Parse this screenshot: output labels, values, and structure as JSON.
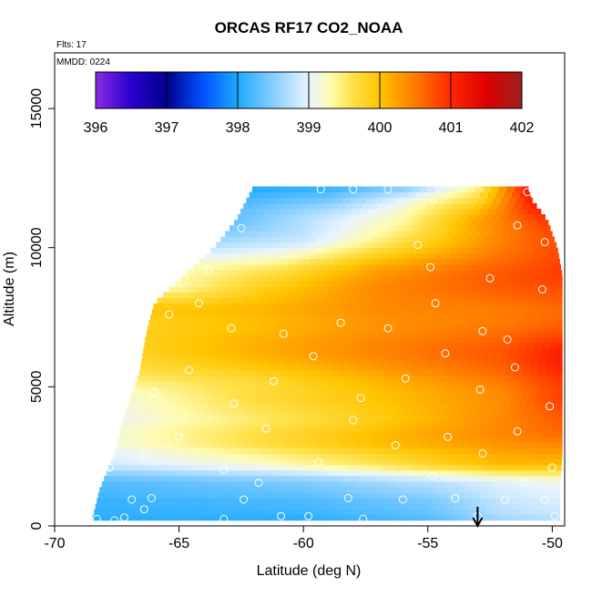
{
  "chart_data": {
    "type": "heatmap",
    "title": "ORCAS RF17 CO2_NOAA",
    "flights_label": "Flts: 17",
    "date_label": "MMDD: 0224",
    "xlabel": "Latitude (deg N)",
    "ylabel": "Altitude (m)",
    "xlim": [
      -70,
      -49.5
    ],
    "ylim": [
      0,
      17000
    ],
    "x_ticks": [
      -70,
      -65,
      -60,
      -55,
      -50
    ],
    "x_tick_labels": [
      "-70",
      "-65",
      "-60",
      "-55",
      "-50"
    ],
    "y_ticks": [
      0,
      5000,
      10000,
      15000
    ],
    "y_tick_labels": [
      "0",
      "5000",
      "10000",
      "15000"
    ],
    "colorbar": {
      "min": 396,
      "max": 402,
      "ticks": [
        396,
        397,
        398,
        399,
        400,
        401,
        402
      ],
      "tick_labels": [
        "396",
        "397",
        "398",
        "399",
        "400",
        "401",
        "402"
      ],
      "stops": [
        {
          "value": 396,
          "color": "#8a2be2"
        },
        {
          "value": 396.5,
          "color": "#2a00d0"
        },
        {
          "value": 397,
          "color": "#00008b"
        },
        {
          "value": 397.5,
          "color": "#0050ff"
        },
        {
          "value": 398,
          "color": "#1eaaff"
        },
        {
          "value": 398.5,
          "color": "#87ceff"
        },
        {
          "value": 399,
          "color": "#e8f4ff"
        },
        {
          "value": 399.3,
          "color": "#fffbb0"
        },
        {
          "value": 399.6,
          "color": "#ffe24d"
        },
        {
          "value": 400,
          "color": "#ffc400"
        },
        {
          "value": 400.5,
          "color": "#ff7a00"
        },
        {
          "value": 401,
          "color": "#ff2800"
        },
        {
          "value": 401.5,
          "color": "#dd0000"
        },
        {
          "value": 402,
          "color": "#9b2020"
        }
      ]
    },
    "coverage": [
      {
        "y": 200,
        "xmin": -68.5,
        "xmax": -49.7
      },
      {
        "y": 1300,
        "xmin": -68.2,
        "xmax": -49.7
      },
      {
        "y": 2600,
        "xmin": -67.6,
        "xmax": -49.6
      },
      {
        "y": 4000,
        "xmin": -67.2,
        "xmax": -49.6
      },
      {
        "y": 5500,
        "xmin": -66.6,
        "xmax": -49.6
      },
      {
        "y": 7000,
        "xmin": -66.3,
        "xmax": -49.6
      },
      {
        "y": 8000,
        "xmin": -66.0,
        "xmax": -49.6
      },
      {
        "y": 9000,
        "xmin": -64.8,
        "xmax": -49.6
      },
      {
        "y": 10000,
        "xmin": -63.6,
        "xmax": -49.8
      },
      {
        "y": 11000,
        "xmin": -62.7,
        "xmax": -50.2
      },
      {
        "y": 11700,
        "xmin": -62.3,
        "xmax": -50.8
      },
      {
        "y": 12200,
        "xmin": -62.0,
        "xmax": -51.0
      }
    ],
    "field_description_rows": [
      {
        "y": 200,
        "values": [
          {
            "x": -68.5,
            "v": 398.0
          },
          {
            "x": -60,
            "v": 398.0
          },
          {
            "x": -55,
            "v": 398.2
          },
          {
            "x": -52,
            "v": 398.6
          },
          {
            "x": -49.7,
            "v": 398.7
          }
        ]
      },
      {
        "y": 900,
        "values": [
          {
            "x": -68.2,
            "v": 398.0
          },
          {
            "x": -60,
            "v": 398.1
          },
          {
            "x": -55,
            "v": 398.3
          },
          {
            "x": -52,
            "v": 398.7
          },
          {
            "x": -49.7,
            "v": 398.8
          }
        ]
      },
      {
        "y": 1600,
        "values": [
          {
            "x": -68,
            "v": 398.3
          },
          {
            "x": -60,
            "v": 398.5
          },
          {
            "x": -55,
            "v": 398.8
          },
          {
            "x": -52,
            "v": 399.0
          },
          {
            "x": -49.7,
            "v": 399.1
          }
        ]
      },
      {
        "y": 2200,
        "values": [
          {
            "x": -67.8,
            "v": 399.0
          },
          {
            "x": -62,
            "v": 399.3
          },
          {
            "x": -57,
            "v": 399.7
          },
          {
            "x": -52,
            "v": 400.2
          },
          {
            "x": -49.6,
            "v": 400.2
          }
        ]
      },
      {
        "y": 3000,
        "values": [
          {
            "x": -67.5,
            "v": 399.1
          },
          {
            "x": -62,
            "v": 399.6
          },
          {
            "x": -57,
            "v": 400.0
          },
          {
            "x": -52,
            "v": 400.3
          },
          {
            "x": -49.6,
            "v": 400.4
          }
        ]
      },
      {
        "y": 3800,
        "values": [
          {
            "x": -67.2,
            "v": 399.0
          },
          {
            "x": -62,
            "v": 399.4
          },
          {
            "x": -57,
            "v": 399.8
          },
          {
            "x": -52,
            "v": 400.3
          },
          {
            "x": -49.6,
            "v": 400.6
          }
        ]
      },
      {
        "y": 4600,
        "values": [
          {
            "x": -66.8,
            "v": 399.3
          },
          {
            "x": -62,
            "v": 399.8
          },
          {
            "x": -57,
            "v": 400.1
          },
          {
            "x": -52,
            "v": 400.5
          },
          {
            "x": -49.6,
            "v": 401.0
          }
        ]
      },
      {
        "y": 5400,
        "values": [
          {
            "x": -66.6,
            "v": 399.6
          },
          {
            "x": -62,
            "v": 399.8
          },
          {
            "x": -57,
            "v": 400.2
          },
          {
            "x": -52,
            "v": 400.6
          },
          {
            "x": -49.6,
            "v": 401.0
          }
        ]
      },
      {
        "y": 6200,
        "values": [
          {
            "x": -66.4,
            "v": 399.7
          },
          {
            "x": -62,
            "v": 400.0
          },
          {
            "x": -57,
            "v": 400.3
          },
          {
            "x": -52,
            "v": 400.6
          },
          {
            "x": -49.6,
            "v": 401.0
          }
        ]
      },
      {
        "y": 7000,
        "values": [
          {
            "x": -66.2,
            "v": 399.9
          },
          {
            "x": -62,
            "v": 400.1
          },
          {
            "x": -57,
            "v": 400.4
          },
          {
            "x": -52,
            "v": 400.6
          },
          {
            "x": -49.6,
            "v": 400.8
          }
        ]
      },
      {
        "y": 7800,
        "values": [
          {
            "x": -66.0,
            "v": 400.1
          },
          {
            "x": -62,
            "v": 400.2
          },
          {
            "x": -57,
            "v": 400.5
          },
          {
            "x": -52,
            "v": 400.6
          },
          {
            "x": -49.6,
            "v": 400.7
          }
        ]
      },
      {
        "y": 8600,
        "values": [
          {
            "x": -65.0,
            "v": 399.2
          },
          {
            "x": -62,
            "v": 399.7
          },
          {
            "x": -57,
            "v": 400.3
          },
          {
            "x": -52,
            "v": 400.6
          },
          {
            "x": -49.6,
            "v": 400.7
          }
        ]
      },
      {
        "y": 9400,
        "values": [
          {
            "x": -64.0,
            "v": 399.2
          },
          {
            "x": -61,
            "v": 399.4
          },
          {
            "x": -57,
            "v": 400.1
          },
          {
            "x": -52,
            "v": 400.6
          },
          {
            "x": -49.7,
            "v": 400.8
          }
        ]
      },
      {
        "y": 10200,
        "values": [
          {
            "x": -63.5,
            "v": 398.8
          },
          {
            "x": -60,
            "v": 399.0
          },
          {
            "x": -56,
            "v": 399.8
          },
          {
            "x": -52,
            "v": 400.6
          },
          {
            "x": -49.9,
            "v": 400.9
          }
        ]
      },
      {
        "y": 11000,
        "values": [
          {
            "x": -62.7,
            "v": 398.3
          },
          {
            "x": -60,
            "v": 398.7
          },
          {
            "x": -56,
            "v": 399.3
          },
          {
            "x": -53,
            "v": 400.2
          },
          {
            "x": -50.2,
            "v": 400.9
          }
        ]
      },
      {
        "y": 11700,
        "values": [
          {
            "x": -62.3,
            "v": 398.1
          },
          {
            "x": -59,
            "v": 398.3
          },
          {
            "x": -56,
            "v": 398.9
          },
          {
            "x": -53,
            "v": 399.6
          },
          {
            "x": -50.8,
            "v": 401.0
          }
        ]
      },
      {
        "y": 12100,
        "values": [
          {
            "x": -62.0,
            "v": 398.0
          },
          {
            "x": -59,
            "v": 398.1
          },
          {
            "x": -56,
            "v": 398.5
          },
          {
            "x": -53,
            "v": 399.4
          },
          {
            "x": -51.0,
            "v": 401.1
          }
        ]
      }
    ],
    "sample_points": [
      {
        "x": -68.3,
        "y": 250
      },
      {
        "x": -67.6,
        "y": 200
      },
      {
        "x": -67.2,
        "y": 300
      },
      {
        "x": -66.9,
        "y": 950
      },
      {
        "x": -66.4,
        "y": 600
      },
      {
        "x": -66.1,
        "y": 1000
      },
      {
        "x": -63.2,
        "y": 250
      },
      {
        "x": -62.4,
        "y": 950
      },
      {
        "x": -61.8,
        "y": 1550
      },
      {
        "x": -60.9,
        "y": 350
      },
      {
        "x": -59.8,
        "y": 350
      },
      {
        "x": -58.2,
        "y": 1000
      },
      {
        "x": -57.6,
        "y": 250
      },
      {
        "x": -56.0,
        "y": 950
      },
      {
        "x": -54.8,
        "y": 1800
      },
      {
        "x": -53.9,
        "y": 1000
      },
      {
        "x": -53.0,
        "y": 350
      },
      {
        "x": -51.9,
        "y": 950
      },
      {
        "x": -51.1,
        "y": 1550
      },
      {
        "x": -50.3,
        "y": 950
      },
      {
        "x": -49.9,
        "y": 350
      },
      {
        "x": -67.8,
        "y": 2100
      },
      {
        "x": -66.4,
        "y": 2500
      },
      {
        "x": -65.0,
        "y": 3200
      },
      {
        "x": -63.2,
        "y": 2000
      },
      {
        "x": -61.5,
        "y": 3500
      },
      {
        "x": -59.4,
        "y": 2300
      },
      {
        "x": -58.0,
        "y": 3800
      },
      {
        "x": -56.3,
        "y": 2900
      },
      {
        "x": -54.2,
        "y": 3200
      },
      {
        "x": -52.8,
        "y": 2600
      },
      {
        "x": -51.4,
        "y": 3400
      },
      {
        "x": -50.0,
        "y": 2100
      },
      {
        "x": -66.0,
        "y": 4800
      },
      {
        "x": -64.6,
        "y": 5600
      },
      {
        "x": -62.8,
        "y": 4400
      },
      {
        "x": -61.2,
        "y": 5200
      },
      {
        "x": -59.6,
        "y": 6100
      },
      {
        "x": -57.7,
        "y": 4600
      },
      {
        "x": -55.9,
        "y": 5300
      },
      {
        "x": -54.3,
        "y": 6200
      },
      {
        "x": -52.9,
        "y": 4900
      },
      {
        "x": -51.5,
        "y": 5700
      },
      {
        "x": -50.1,
        "y": 4300
      },
      {
        "x": -65.4,
        "y": 7600
      },
      {
        "x": -64.2,
        "y": 8000
      },
      {
        "x": -62.9,
        "y": 7100
      },
      {
        "x": -60.8,
        "y": 6900
      },
      {
        "x": -58.5,
        "y": 7300
      },
      {
        "x": -56.6,
        "y": 7100
      },
      {
        "x": -54.7,
        "y": 8000
      },
      {
        "x": -52.8,
        "y": 7000
      },
      {
        "x": -51.8,
        "y": 6700
      },
      {
        "x": -50.4,
        "y": 8500
      },
      {
        "x": -63.8,
        "y": 9200
      },
      {
        "x": -62.5,
        "y": 10700
      },
      {
        "x": -59.3,
        "y": 12100
      },
      {
        "x": -58.0,
        "y": 12100
      },
      {
        "x": -56.6,
        "y": 12100
      },
      {
        "x": -55.4,
        "y": 10100
      },
      {
        "x": -54.9,
        "y": 9300
      },
      {
        "x": -52.5,
        "y": 8900
      },
      {
        "x": -51.4,
        "y": 10800
      },
      {
        "x": -51.0,
        "y": 12000
      },
      {
        "x": -50.3,
        "y": 10200
      }
    ],
    "arrow_marker": {
      "x": -53.0
    }
  }
}
